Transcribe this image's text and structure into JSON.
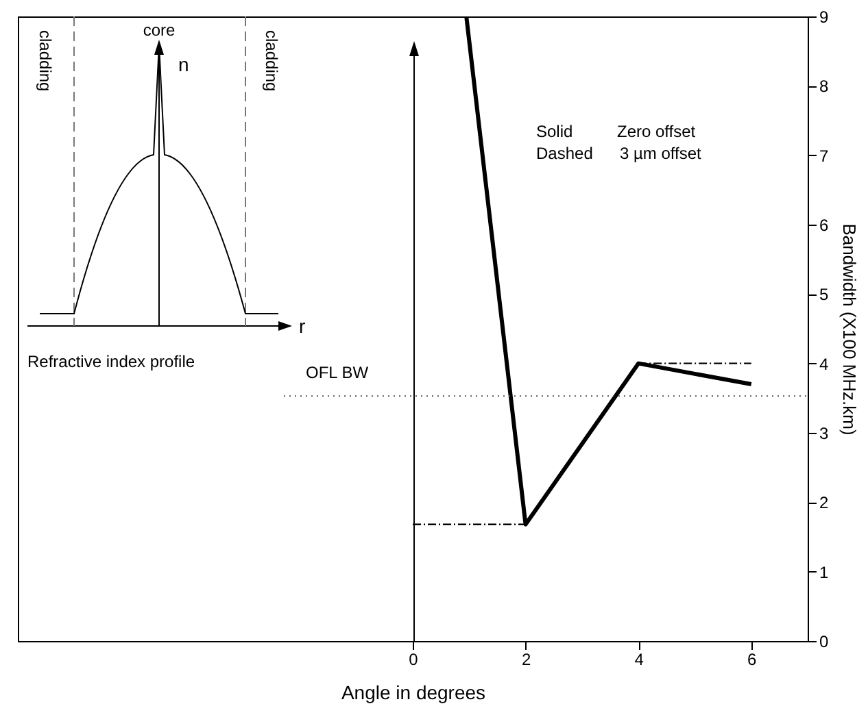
{
  "chart_data": {
    "type": "line",
    "xlabel": "Angle in degrees",
    "ylabel": "Bandwidth (X100 MHz.km)",
    "series": [
      {
        "x": [
          0.95,
          2,
          4,
          6
        ],
        "values": [
          9,
          1.68,
          4.0,
          3.7
        ],
        "color": "#000000",
        "line_style": "solid"
      },
      {
        "x": [
          0,
          2
        ],
        "values": [
          1.68,
          1.68
        ],
        "color": "#000000",
        "line_style": "dashed"
      },
      {
        "x": [
          4,
          6
        ],
        "values": [
          4.0,
          4.0
        ],
        "color": "#000000",
        "line_style": "dashed"
      }
    ],
    "xlim": [
      -7,
      7
    ],
    "xticks": [
      0,
      2,
      4,
      6
    ],
    "ylim": [
      0,
      9
    ],
    "yticks": [
      0,
      1,
      2,
      3,
      4,
      5,
      6,
      7,
      8,
      9
    ],
    "ref_lines": [
      {
        "axis": "y",
        "value": 3.53,
        "label": "OFL BW",
        "line_style": "dotted",
        "color": "#555555"
      }
    ],
    "annotations": [
      "core",
      "n",
      "cladding",
      "cladding",
      "r",
      "Refractive index profile",
      "Solid",
      "Zero offset",
      "Dashed",
      "3 µm offset"
    ],
    "grid": false,
    "marker": "none"
  }
}
